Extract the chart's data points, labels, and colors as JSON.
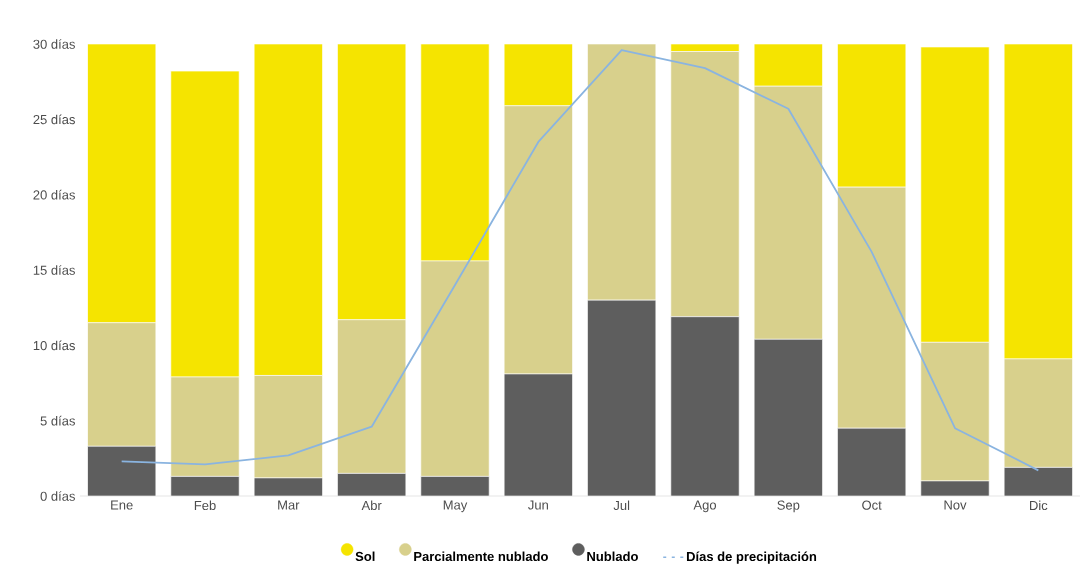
{
  "chart_data": {
    "type": "bar",
    "stacked": true,
    "categories": [
      "Ene",
      "Feb",
      "Mar",
      "Abr",
      "May",
      "Jun",
      "Jul",
      "Ago",
      "Sep",
      "Oct",
      "Nov",
      "Dic"
    ],
    "series": [
      {
        "name": "Nublado",
        "color": "#5e5e5e",
        "values": [
          3.3,
          1.3,
          1.2,
          1.5,
          1.3,
          8.1,
          13.0,
          11.9,
          10.4,
          4.5,
          1.0,
          1.9
        ]
      },
      {
        "name": "Parcialmente nublado",
        "color": "#d8d08c",
        "values": [
          8.2,
          6.6,
          6.8,
          10.2,
          14.3,
          17.8,
          17.0,
          17.6,
          16.8,
          16.0,
          9.2,
          7.2
        ]
      },
      {
        "name": "Sol",
        "color": "#f5e400",
        "values": [
          18.5,
          20.3,
          22.0,
          18.3,
          14.4,
          4.1,
          0,
          0.5,
          2.8,
          9.5,
          19.6,
          20.9
        ]
      },
      {
        "name": "Días de precipitación",
        "type": "line",
        "color": "#8ab4e0",
        "values": [
          2.3,
          2.1,
          2.7,
          4.6,
          14.0,
          23.5,
          29.6,
          28.4,
          25.7,
          16.2,
          4.5,
          1.7
        ]
      }
    ],
    "ylim": [
      0,
      30
    ],
    "yticks": [
      {
        "value": 0,
        "label": "0 días"
      },
      {
        "value": 5,
        "label": "5 días"
      },
      {
        "value": 10,
        "label": "10 días"
      },
      {
        "value": 15,
        "label": "15 días"
      },
      {
        "value": 20,
        "label": "20 días"
      },
      {
        "value": 25,
        "label": "25 días"
      },
      {
        "value": 30,
        "label": "30 días"
      }
    ],
    "grid": false,
    "legend": "bottom",
    "marker": "none"
  }
}
